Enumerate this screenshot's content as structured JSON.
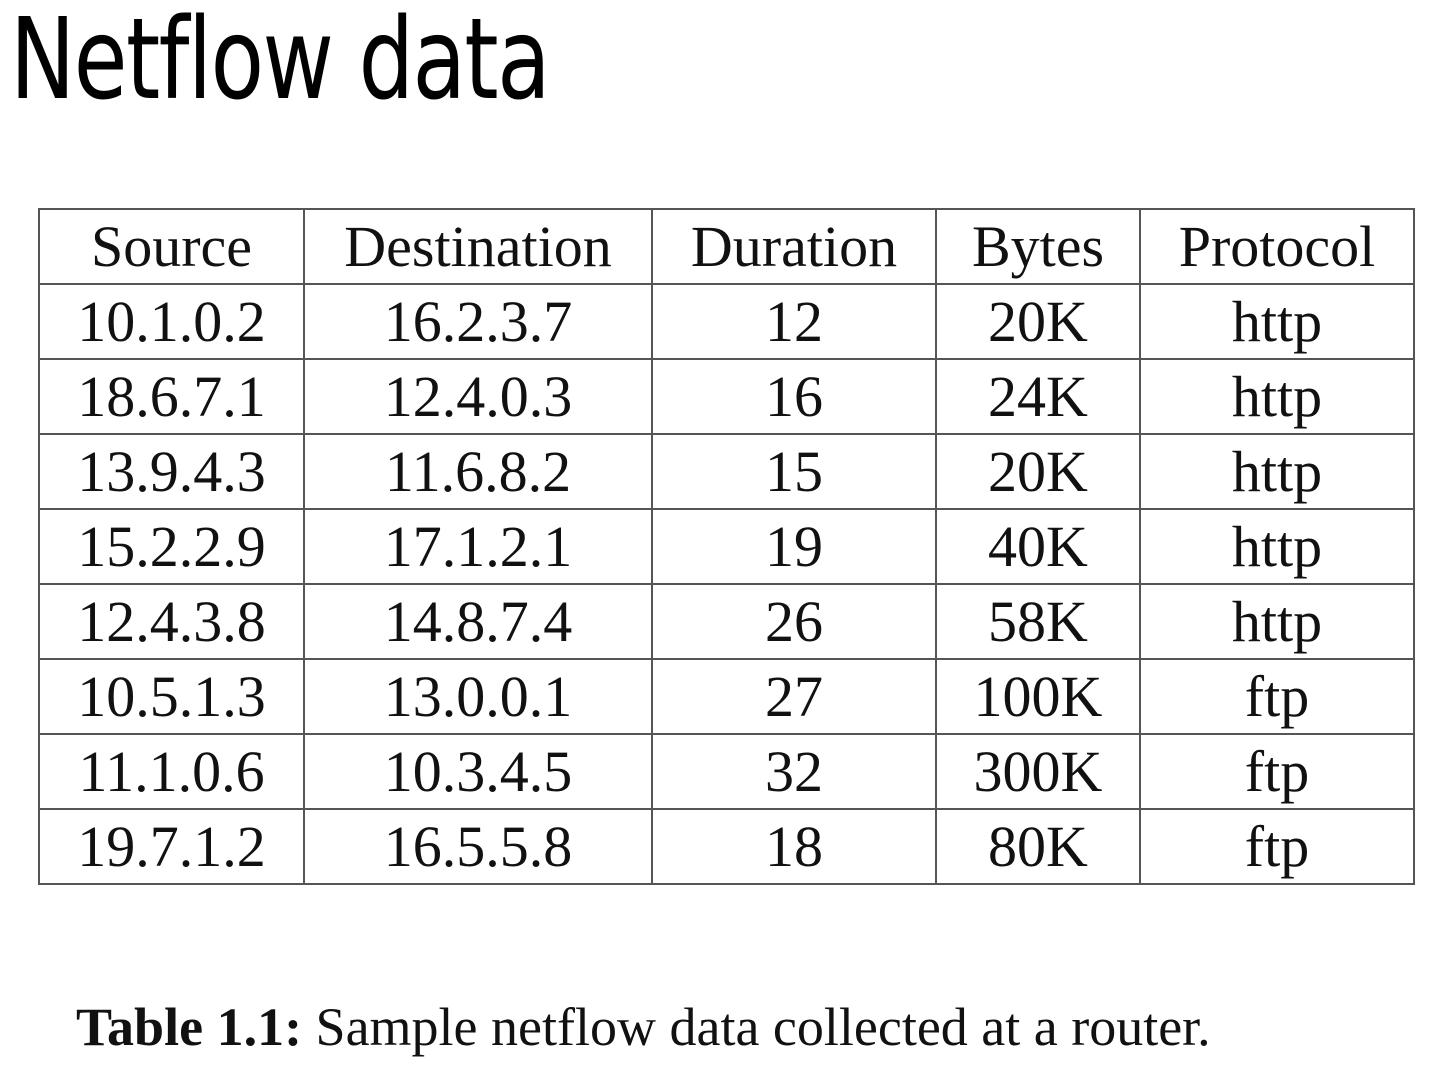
{
  "title": "Netflow data",
  "table": {
    "columns": [
      "Source",
      "Destination",
      "Duration",
      "Bytes",
      "Protocol"
    ],
    "rows": [
      [
        "10.1.0.2",
        "16.2.3.7",
        "12",
        "20K",
        "http"
      ],
      [
        "18.6.7.1",
        "12.4.0.3",
        "16",
        "24K",
        "http"
      ],
      [
        "13.9.4.3",
        "11.6.8.2",
        "15",
        "20K",
        "http"
      ],
      [
        "15.2.2.9",
        "17.1.2.1",
        "19",
        "40K",
        "http"
      ],
      [
        "12.4.3.8",
        "14.8.7.4",
        "26",
        "58K",
        "http"
      ],
      [
        "10.5.1.3",
        "13.0.0.1",
        "27",
        "100K",
        "ftp"
      ],
      [
        "11.1.0.6",
        "10.3.4.5",
        "32",
        "300K",
        "ftp"
      ],
      [
        "19.7.1.2",
        "16.5.5.8",
        "18",
        "80K",
        "ftp"
      ]
    ]
  },
  "caption": {
    "label": "Table 1.1:",
    "text": " Sample netflow data collected at a router."
  }
}
